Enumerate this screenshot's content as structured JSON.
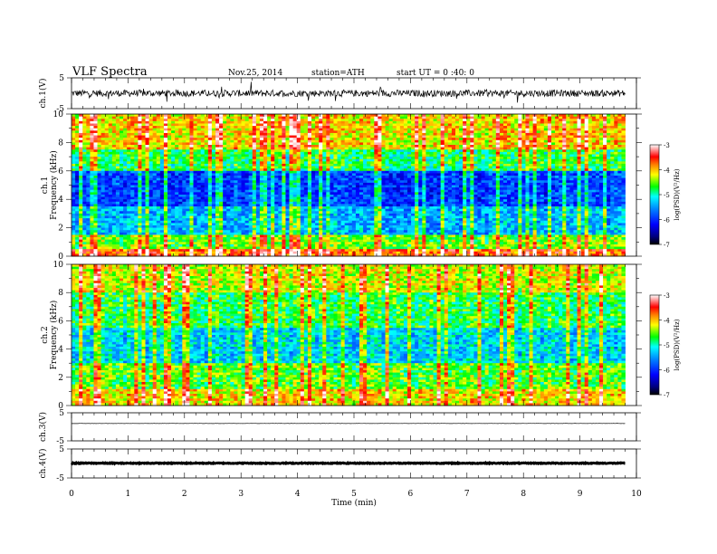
{
  "header": {
    "title": "VLF  Spectra",
    "date": "Nov.25, 2014",
    "station": "station=ATH",
    "start": "start  UT  =   0 :40: 0"
  },
  "chart_data": [
    {
      "id": "ch1",
      "type": "line",
      "ylabel": "ch.1(V)",
      "ylim": [
        -5,
        5
      ],
      "yticks": [
        "5",
        "-5"
      ],
      "xlim": [
        0,
        10
      ],
      "baseline": 0.0,
      "noise": 1.1,
      "color": "#000000"
    },
    {
      "id": "spec1",
      "type": "heatmap",
      "ylabel": "ch.1",
      "ylabel2": "Frequency  (kHz)",
      "ylim": [
        0,
        10
      ],
      "yticks": [
        "0",
        "2",
        "4",
        "6",
        "8",
        "10"
      ],
      "xlim": [
        0,
        10
      ],
      "time_end": 9.8,
      "colorbar": {
        "label": "log(PSD)(V²/Hz)",
        "ticks": [
          "-3",
          "-4",
          "-5",
          "-6",
          "-7"
        ],
        "range": [
          -7,
          -3
        ]
      }
    },
    {
      "id": "spec2",
      "type": "heatmap",
      "ylabel": "ch.2",
      "ylabel2": "Frequency  (kHz)",
      "ylim": [
        0,
        10
      ],
      "yticks": [
        "0",
        "2",
        "4",
        "6",
        "8",
        "10"
      ],
      "xlim": [
        0,
        10
      ],
      "time_end": 9.8,
      "colorbar": {
        "label": "log(PSD)(V²/Hz)",
        "ticks": [
          "-3",
          "-4",
          "-5",
          "-6",
          "-7"
        ],
        "range": [
          -7,
          -3
        ]
      }
    },
    {
      "id": "ch3",
      "type": "line",
      "ylabel": "ch.3(V)",
      "ylim": [
        -5,
        5
      ],
      "yticks": [
        "5",
        "-5"
      ],
      "xlim": [
        0,
        10
      ],
      "baseline": 1.2,
      "noise": 0.05,
      "color": "#000000"
    },
    {
      "id": "ch4",
      "type": "line",
      "ylabel": "ch.4(V)",
      "ylim": [
        -5,
        5
      ],
      "yticks": [
        "5",
        "-5"
      ],
      "xlim": [
        0,
        10
      ],
      "baseline": 0.1,
      "noise": 0.15,
      "color": "#000000"
    }
  ],
  "xaxis": {
    "label": "Time  (min)",
    "ticks": [
      "0",
      "1",
      "2",
      "3",
      "4",
      "5",
      "6",
      "7",
      "8",
      "9",
      "10"
    ]
  }
}
